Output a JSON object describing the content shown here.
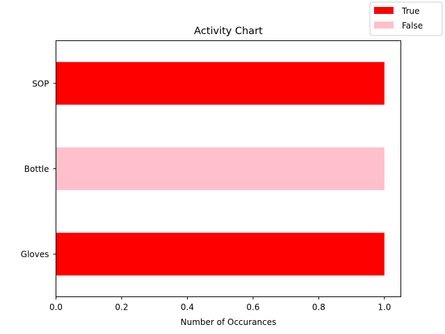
{
  "chart_data": {
    "type": "bar",
    "orientation": "horizontal",
    "title": "Activity Chart",
    "xlabel": "Number of Occurances",
    "ylabel": "",
    "xlim": [
      0,
      1.05
    ],
    "x_ticks": [
      0.0,
      0.2,
      0.4,
      0.6,
      0.8,
      1.0
    ],
    "x_tick_labels": [
      "0.0",
      "0.2",
      "0.4",
      "0.6",
      "0.8",
      "1.0"
    ],
    "categories": [
      "SOP",
      "Bottle",
      "Gloves"
    ],
    "values": [
      1,
      1,
      1
    ],
    "bar_status": [
      "True",
      "False",
      "True"
    ],
    "legend": {
      "placement": "top-right",
      "entries": [
        {
          "label": "True",
          "color": "#ff0000"
        },
        {
          "label": "False",
          "color": "#ffc0cb"
        }
      ]
    },
    "colors": {
      "True": "#ff0000",
      "False": "#ffc0cb"
    },
    "grid": false
  }
}
